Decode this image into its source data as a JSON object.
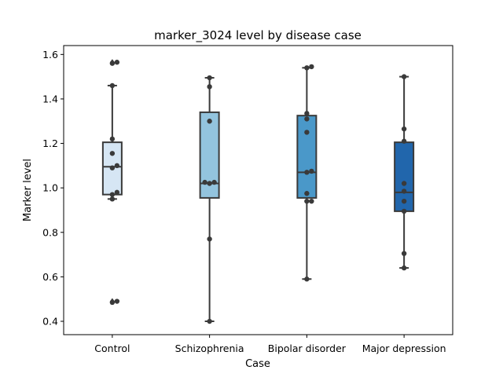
{
  "chart_data": {
    "type": "box",
    "title": "marker_3024 level by disease case",
    "xlabel": "Case",
    "ylabel": "Marker level",
    "ylim": [
      0.34,
      1.64
    ],
    "yticks": [
      0.4,
      0.6,
      0.8,
      1.0,
      1.2,
      1.4,
      1.6
    ],
    "ytick_labels": [
      "0.4",
      "0.6",
      "0.8",
      "1.0",
      "1.2",
      "1.4",
      "1.6"
    ],
    "grid": false,
    "categories": [
      "Control",
      "Schizophrenia",
      "Bipolar disorder",
      "Major depression"
    ],
    "colors": [
      "#d6e6f4",
      "#93c4de",
      "#4a98c9",
      "#2166ac"
    ],
    "edge_color": "#3a3a3a",
    "point_color": "#3a3a3a",
    "boxes": [
      {
        "q1": 0.97,
        "median": 1.095,
        "q3": 1.205,
        "whisker_low": 0.95,
        "whisker_high": 1.46,
        "outliers": [
          1.565,
          0.49
        ]
      },
      {
        "q1": 0.955,
        "median": 1.02,
        "q3": 1.34,
        "whisker_low": 0.4,
        "whisker_high": 1.495,
        "outliers": []
      },
      {
        "q1": 0.955,
        "median": 1.07,
        "q3": 1.325,
        "whisker_low": 0.59,
        "whisker_high": 1.54,
        "outliers": []
      },
      {
        "q1": 0.895,
        "median": 0.98,
        "q3": 1.205,
        "whisker_low": 0.64,
        "whisker_high": 1.5,
        "outliers": []
      }
    ],
    "points": [
      [
        1.565,
        1.56,
        1.46,
        1.22,
        1.155,
        1.1,
        1.09,
        0.98,
        0.97,
        0.95,
        0.49,
        0.485
      ],
      [
        1.495,
        1.455,
        1.3,
        1.025,
        1.02,
        1.025,
        0.77,
        0.4
      ],
      [
        1.545,
        1.54,
        1.335,
        1.31,
        1.25,
        1.075,
        1.07,
        0.975,
        0.94,
        0.94,
        0.59
      ],
      [
        1.5,
        1.265,
        1.21,
        1.02,
        0.985,
        0.94,
        0.895,
        0.705,
        0.64
      ]
    ]
  }
}
